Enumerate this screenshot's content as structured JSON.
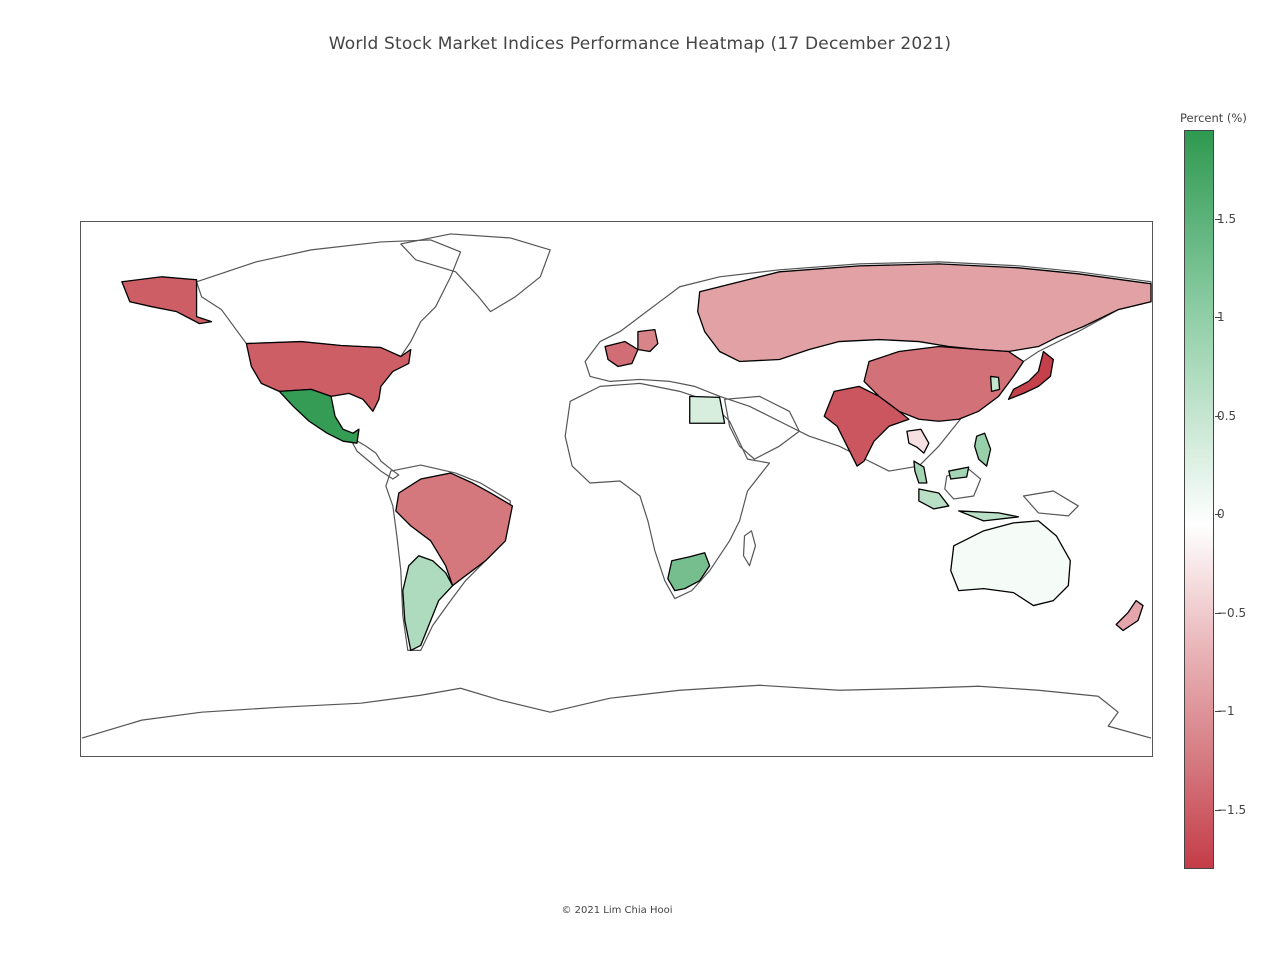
{
  "title": "World Stock Market Indices Performance Heatmap (17 December 2021)",
  "footer": "© 2021 Lim Chia Hooi",
  "colorbar": {
    "title": "Percent (%)",
    "range": [
      -1.8,
      1.95
    ],
    "colors": {
      "max": "#2e9950",
      "mid": "#ffffff",
      "min": "#c43c48"
    },
    "ticks": [
      {
        "value": 1.5,
        "label": "1.5"
      },
      {
        "value": 1,
        "label": "1"
      },
      {
        "value": 0.5,
        "label": "0.5"
      },
      {
        "value": 0,
        "label": "0"
      },
      {
        "value": -0.5,
        "label": "−0.5"
      },
      {
        "value": -1,
        "label": "−1"
      },
      {
        "value": -1.5,
        "label": "−1.5"
      }
    ]
  },
  "map_data": {
    "projection": "equirectangular",
    "coastline_color": "#555555",
    "countries": [
      {
        "name": "United States",
        "value": -1.35
      },
      {
        "name": "Mexico",
        "value": 1.9
      },
      {
        "name": "Brazil",
        "value": -1.0
      },
      {
        "name": "Argentina",
        "value": 0.8
      },
      {
        "name": "France",
        "value": -1.15
      },
      {
        "name": "Germany",
        "value": -0.9
      },
      {
        "name": "Russia",
        "value": -0.65
      },
      {
        "name": "China",
        "value": -1.1
      },
      {
        "name": "India",
        "value": -1.45
      },
      {
        "name": "Japan",
        "value": -1.75
      },
      {
        "name": "South Korea",
        "value": 0.6
      },
      {
        "name": "Egypt",
        "value": 0.4
      },
      {
        "name": "South Africa",
        "value": 1.3
      },
      {
        "name": "Australia",
        "value": 0.1
      },
      {
        "name": "New Zealand",
        "value": -0.6
      },
      {
        "name": "Thailand",
        "value": -0.2
      },
      {
        "name": "Malaysia",
        "value": 0.9
      },
      {
        "name": "Philippines",
        "value": 1.0
      },
      {
        "name": "Indonesia",
        "value": 0.7
      }
    ]
  }
}
